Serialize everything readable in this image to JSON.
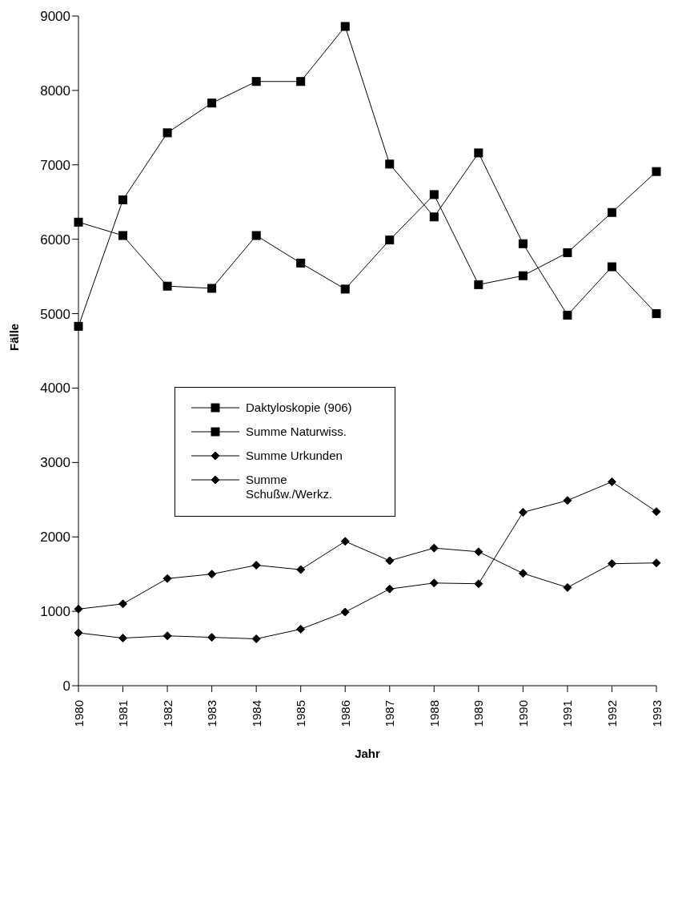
{
  "chart_data": {
    "type": "line",
    "xlabel": "Jahr",
    "ylabel": "Fälle",
    "categories": [
      "1980",
      "1981",
      "1982",
      "1983",
      "1984",
      "1985",
      "1986",
      "1987",
      "1988",
      "1989",
      "1990",
      "1991",
      "1992",
      "1993"
    ],
    "series": [
      {
        "name": "Daktyloskopie (906)",
        "color": "#000000",
        "marker": "square",
        "values": [
          4830,
          6530,
          7430,
          7830,
          8120,
          8120,
          8860,
          7010,
          6300,
          7160,
          5940,
          4980,
          5630,
          5000
        ]
      },
      {
        "name": "Summe Naturwiss.",
        "color": "#000000",
        "marker": "square",
        "values": [
          6230,
          6050,
          5370,
          5340,
          6050,
          5680,
          5330,
          5990,
          6600,
          5390,
          5510,
          5820,
          6360,
          6910
        ]
      },
      {
        "name": "Summe Urkunden",
        "color": "#000000",
        "marker": "diamond",
        "values": [
          710,
          640,
          670,
          650,
          630,
          760,
          990,
          1300,
          1380,
          1370,
          2330,
          2490,
          2740,
          2340
        ]
      },
      {
        "name": "Summe Schußw./Werkz.",
        "color": "#000000",
        "marker": "diamond",
        "values": [
          1030,
          1100,
          1440,
          1500,
          1620,
          1560,
          1940,
          1680,
          1850,
          1800,
          1510,
          1320,
          1640,
          1650
        ]
      }
    ],
    "ylim": [
      0,
      9000
    ],
    "yticks": [
      0,
      1000,
      2000,
      3000,
      4000,
      5000,
      6000,
      7000,
      8000,
      9000
    ],
    "grid": false,
    "legend": "center",
    "line_style": "solid"
  }
}
